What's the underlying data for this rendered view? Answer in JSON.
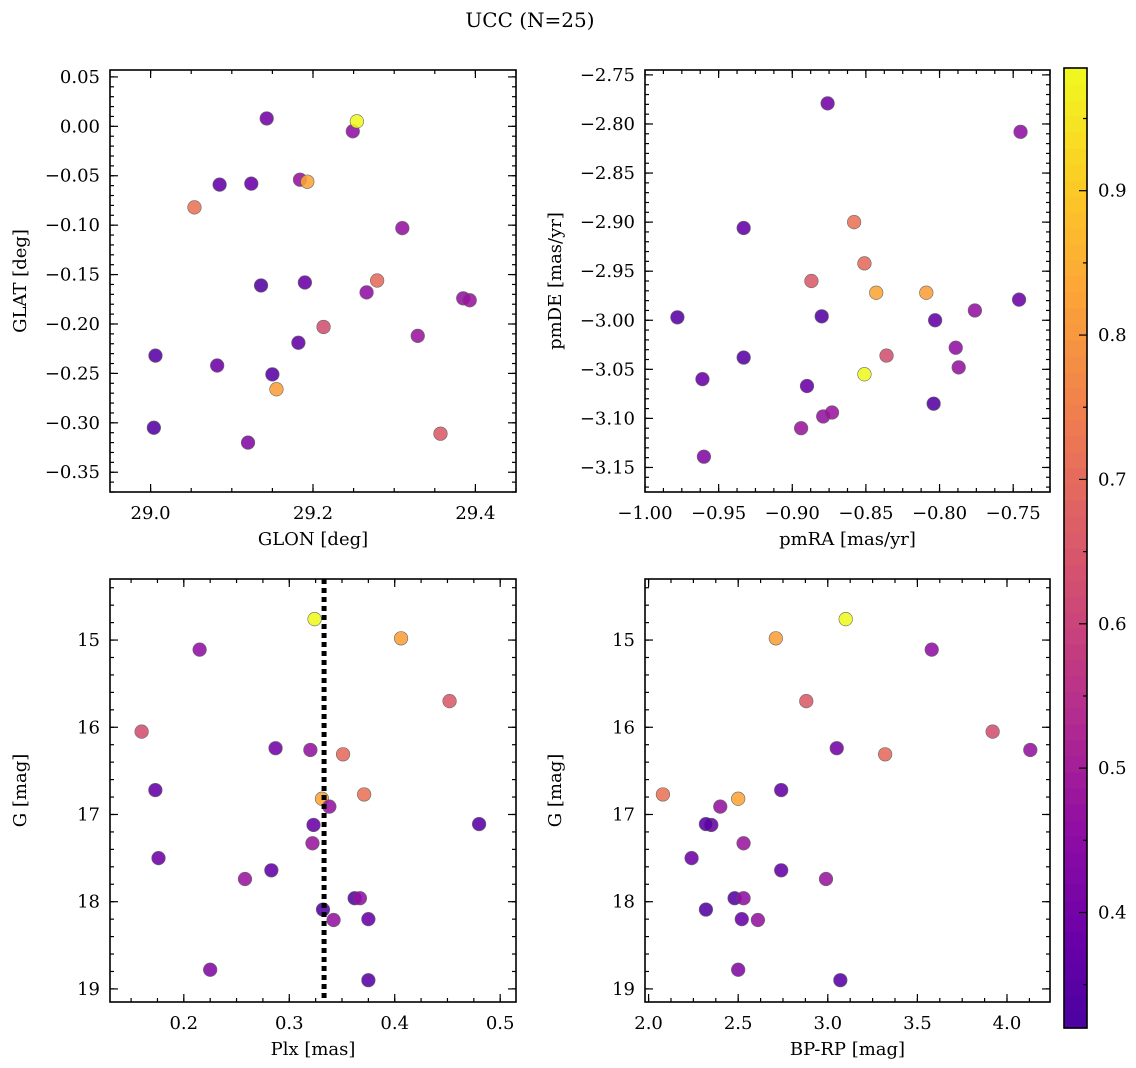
{
  "chart_data": {
    "type": "scatter",
    "title": "UCC (N=25)",
    "colormap": "plasma",
    "colorbar": {
      "range": [
        0.32,
        0.985
      ],
      "ticks": [
        0.4,
        0.5,
        0.6,
        0.7,
        0.8,
        0.9
      ]
    },
    "points": [
      {
        "glon": 29.143,
        "glat": 0.008,
        "pmra": -0.876,
        "pmde": -2.779,
        "plx": 0.287,
        "bprp": 3.05,
        "g": 16.24,
        "c": 0.4
      },
      {
        "glon": 29.249,
        "glat": -0.005,
        "pmra": -0.745,
        "pmde": -2.808,
        "plx": 0.215,
        "bprp": 3.58,
        "g": 15.11,
        "c": 0.46
      },
      {
        "glon": 29.254,
        "glat": 0.005,
        "pmra": -0.851,
        "pmde": -3.055,
        "plx": 0.324,
        "bprp": 3.1,
        "g": 14.76,
        "c": 0.985
      },
      {
        "glon": 29.085,
        "glat": -0.059,
        "pmra": -0.933,
        "pmde": -2.906,
        "plx": 0.173,
        "bprp": 2.74,
        "g": 16.72,
        "c": 0.37
      },
      {
        "glon": 29.124,
        "glat": -0.058,
        "pmra": -0.961,
        "pmde": -3.06,
        "plx": 0.323,
        "bprp": 2.35,
        "g": 17.12,
        "c": 0.38
      },
      {
        "glon": 29.184,
        "glat": -0.054,
        "pmra": -0.776,
        "pmde": -2.99,
        "plx": 0.32,
        "bprp": 4.13,
        "g": 16.26,
        "c": 0.47
      },
      {
        "glon": 29.193,
        "glat": -0.056,
        "pmra": -0.843,
        "pmde": -2.972,
        "plx": 0.331,
        "bprp": 2.5,
        "g": 16.82,
        "c": 0.83
      },
      {
        "glon": 29.054,
        "glat": -0.082,
        "pmra": -0.858,
        "pmde": -2.9,
        "plx": 0.371,
        "bprp": 2.08,
        "g": 16.77,
        "c": 0.72
      },
      {
        "glon": 29.31,
        "glat": -0.103,
        "pmra": -0.787,
        "pmde": -3.048,
        "plx": 0.338,
        "bprp": 2.4,
        "g": 16.91,
        "c": 0.47
      },
      {
        "glon": 29.136,
        "glat": -0.161,
        "pmra": -0.88,
        "pmde": -2.996,
        "plx": 0.362,
        "bprp": 2.48,
        "g": 17.96,
        "c": 0.34
      },
      {
        "glon": 29.19,
        "glat": -0.158,
        "pmra": -0.89,
        "pmde": -3.067,
        "plx": 0.375,
        "bprp": 2.52,
        "g": 18.2,
        "c": 0.38
      },
      {
        "glon": 29.279,
        "glat": -0.156,
        "pmra": -0.851,
        "pmde": -2.942,
        "plx": 0.351,
        "bprp": 3.32,
        "g": 16.31,
        "c": 0.7
      },
      {
        "glon": 29.266,
        "glat": -0.168,
        "pmra": -0.789,
        "pmde": -3.028,
        "plx": 0.367,
        "bprp": 2.53,
        "g": 17.96,
        "c": 0.46
      },
      {
        "glon": 29.385,
        "glat": -0.174,
        "pmra": -0.879,
        "pmde": -3.098,
        "plx": 0.342,
        "bprp": 2.61,
        "g": 18.21,
        "c": 0.47
      },
      {
        "glon": 29.393,
        "glat": -0.176,
        "pmra": -0.873,
        "pmde": -3.094,
        "plx": 0.322,
        "bprp": 2.53,
        "g": 17.33,
        "c": 0.48
      },
      {
        "glon": 29.213,
        "glat": -0.203,
        "pmra": -0.836,
        "pmde": -3.036,
        "plx": 0.16,
        "bprp": 3.92,
        "g": 16.05,
        "c": 0.63
      },
      {
        "glon": 29.329,
        "glat": -0.212,
        "pmra": -0.894,
        "pmde": -3.11,
        "plx": 0.258,
        "bprp": 2.99,
        "g": 17.74,
        "c": 0.48
      },
      {
        "glon": 29.182,
        "glat": -0.219,
        "pmra": -0.803,
        "pmde": -3.0,
        "plx": 0.283,
        "bprp": 2.74,
        "g": 17.64,
        "c": 0.37
      },
      {
        "glon": 29.006,
        "glat": -0.232,
        "pmra": -0.978,
        "pmde": -2.997,
        "plx": 0.48,
        "bprp": 2.32,
        "g": 17.11,
        "c": 0.35
      },
      {
        "glon": 29.082,
        "glat": -0.242,
        "pmra": -0.746,
        "pmde": -2.979,
        "plx": 0.176,
        "bprp": 2.24,
        "g": 17.5,
        "c": 0.39
      },
      {
        "glon": 29.15,
        "glat": -0.251,
        "pmra": -0.933,
        "pmde": -3.038,
        "plx": 0.375,
        "bprp": 3.07,
        "g": 18.9,
        "c": 0.35
      },
      {
        "glon": 29.155,
        "glat": -0.266,
        "pmra": -0.809,
        "pmde": -2.972,
        "plx": 0.406,
        "bprp": 2.71,
        "g": 14.98,
        "c": 0.82
      },
      {
        "glon": 29.357,
        "glat": -0.311,
        "pmra": -0.887,
        "pmde": -2.96,
        "plx": 0.452,
        "bprp": 2.88,
        "g": 15.7,
        "c": 0.66
      },
      {
        "glon": 29.12,
        "glat": -0.32,
        "pmra": -0.96,
        "pmde": -3.139,
        "plx": 0.225,
        "bprp": 2.5,
        "g": 18.78,
        "c": 0.43
      },
      {
        "glon": 29.004,
        "glat": -0.305,
        "pmra": -0.804,
        "pmde": -3.085,
        "plx": 0.332,
        "bprp": 2.32,
        "g": 18.09,
        "c": 0.34
      }
    ],
    "panels": [
      {
        "xkey": "glon",
        "ykey": "glat",
        "xlabel": "GLON [deg]",
        "ylabel": "GLAT [deg]",
        "xlim": [
          28.95,
          29.45
        ],
        "ylim": [
          -0.37,
          0.057
        ],
        "xticks": [
          29.0,
          29.2,
          29.4
        ],
        "xticklabels": [
          "29.0",
          "29.2",
          "29.4"
        ],
        "yticks": [
          0.05,
          0.0,
          -0.05,
          -0.1,
          -0.15,
          -0.2,
          -0.25,
          -0.3,
          -0.35
        ],
        "yticklabels": [
          "0.05",
          "0.00",
          "−0.05",
          "−0.10",
          "−0.15",
          "−0.20",
          "−0.25",
          "−0.30",
          "−0.35"
        ],
        "yinvert": false
      },
      {
        "xkey": "pmra",
        "ykey": "pmde",
        "xlabel": "pmRA [mas/yr]",
        "ylabel": "pmDE [mas/yr]",
        "xlim": [
          -1.0,
          -0.725
        ],
        "ylim": [
          -3.175,
          -2.745
        ],
        "xticks": [
          -1.0,
          -0.95,
          -0.9,
          -0.85,
          -0.8,
          -0.75
        ],
        "xticklabels": [
          "−1.00",
          "−0.95",
          "−0.90",
          "−0.85",
          "−0.80",
          "−0.75"
        ],
        "yticks": [
          -2.75,
          -2.8,
          -2.85,
          -2.9,
          -2.95,
          -3.0,
          -3.05,
          -3.1,
          -3.15
        ],
        "yticklabels": [
          "−2.75",
          "−2.80",
          "−2.85",
          "−2.90",
          "−2.95",
          "−3.00",
          "−3.05",
          "−3.10",
          "−3.15"
        ],
        "yinvert": false
      },
      {
        "xkey": "plx",
        "ykey": "g",
        "xlabel": "Plx [mas]",
        "ylabel": "G [mag]",
        "xlim": [
          0.13,
          0.515
        ],
        "ylim": [
          14.3,
          19.15
        ],
        "xticks": [
          0.2,
          0.3,
          0.4,
          0.5
        ],
        "xticklabels": [
          "0.2",
          "0.3",
          "0.4",
          "0.5"
        ],
        "yticks": [
          15,
          16,
          17,
          18,
          19
        ],
        "yticklabels": [
          "15",
          "16",
          "17",
          "18",
          "19"
        ],
        "yinvert": true,
        "vline": 0.333
      },
      {
        "xkey": "bprp",
        "ykey": "g",
        "xlabel": "BP-RP [mag]",
        "ylabel": "G [mag]",
        "xlim": [
          1.98,
          4.24
        ],
        "ylim": [
          14.3,
          19.15
        ],
        "xticks": [
          2.0,
          2.5,
          3.0,
          3.5,
          4.0
        ],
        "xticklabels": [
          "2.0",
          "2.5",
          "3.0",
          "3.5",
          "4.0"
        ],
        "yticks": [
          15,
          16,
          17,
          18,
          19
        ],
        "yticklabels": [
          "15",
          "16",
          "17",
          "18",
          "19"
        ],
        "yinvert": true
      }
    ]
  }
}
